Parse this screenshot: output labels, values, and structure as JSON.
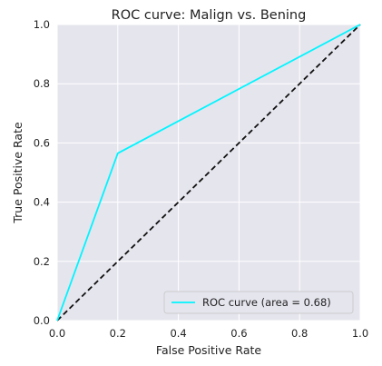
{
  "chart_data": {
    "type": "line",
    "title": "ROC curve: Malign vs. Bening",
    "xlabel": "False Positive Rate",
    "ylabel": "True Positive Rate",
    "xlim": [
      0.0,
      1.0
    ],
    "ylim": [
      0.0,
      1.0
    ],
    "xticks": [
      "0.0",
      "0.2",
      "0.4",
      "0.6",
      "0.8",
      "1.0"
    ],
    "yticks": [
      "0.0",
      "0.2",
      "0.4",
      "0.6",
      "0.8",
      "1.0"
    ],
    "grid": true,
    "legend_position": "lower-right",
    "series": [
      {
        "name": "ROC curve (area = 0.68)",
        "color": "#00f5ff",
        "style": "solid",
        "x": [
          0.0,
          0.2,
          1.0
        ],
        "y": [
          0.0,
          0.565,
          1.0
        ]
      },
      {
        "color": "#111111",
        "style": "dashed",
        "x": [
          0.0,
          1.0
        ],
        "y": [
          0.0,
          1.0
        ]
      }
    ],
    "colors": {
      "plot_background": "#e5e5ee",
      "grid": "#ffffff"
    }
  }
}
